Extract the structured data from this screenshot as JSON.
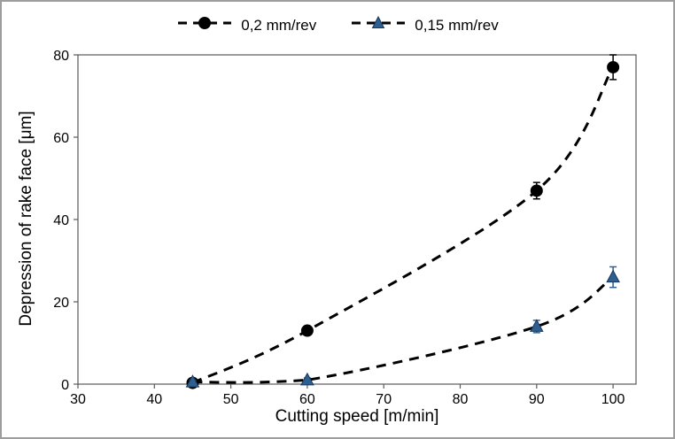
{
  "figure": {
    "background": "#ffffff",
    "border_color": "#9d9d9d"
  },
  "chart_data": {
    "type": "line",
    "title": "",
    "xlabel": "Cutting speed [m/min]",
    "ylabel": "Depression of rake face [μm]",
    "xlim": [
      30,
      103
    ],
    "ylim": [
      0,
      80
    ],
    "x_ticks": [
      30,
      40,
      50,
      60,
      70,
      80,
      90,
      100
    ],
    "y_ticks": [
      0,
      20,
      40,
      60,
      80
    ],
    "grid": false,
    "legend_position": "top-center",
    "axis_color": "#595959",
    "tick_label_color": "#000000",
    "series": [
      {
        "name": "0,2 mm/rev",
        "marker": "circle",
        "marker_color": "#000000",
        "marker_edge": "#000000",
        "line_color": "#000000",
        "line_style": "dashed",
        "x": [
          45,
          60,
          90,
          100
        ],
        "y": [
          0.3,
          13,
          47,
          77
        ],
        "y_err": [
          0.5,
          0.8,
          2,
          3
        ]
      },
      {
        "name": "0,15 mm/rev",
        "marker": "triangle",
        "marker_color": "#2e5f8f",
        "marker_edge": "#17375e",
        "line_color": "#000000",
        "line_style": "dashed",
        "x": [
          45,
          60,
          90,
          100
        ],
        "y": [
          0.5,
          1,
          14,
          26
        ],
        "y_err": [
          0.5,
          0.5,
          1.5,
          2.5
        ]
      }
    ]
  }
}
